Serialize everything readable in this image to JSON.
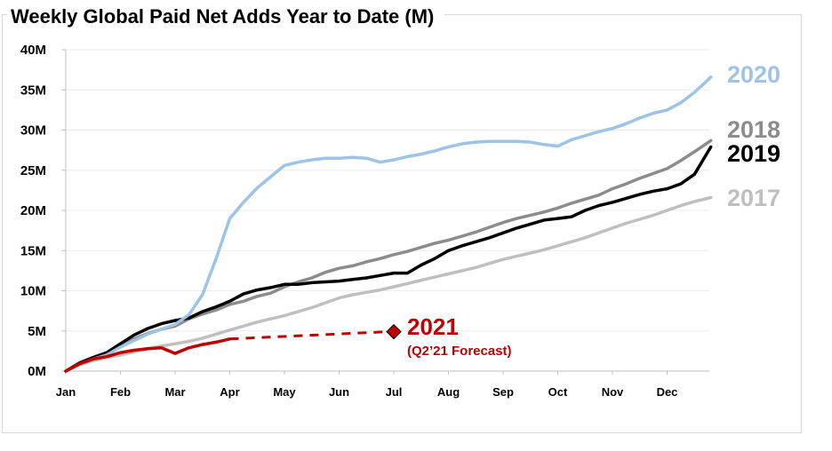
{
  "chart_data": {
    "type": "line",
    "title": "Weekly Global Paid Net Adds Year to Date (M)",
    "xlabel": "",
    "ylabel": "",
    "x_tick_labels": [
      "Jan",
      "Feb",
      "Mar",
      "Apr",
      "May",
      "Jun",
      "Jul",
      "Aug",
      "Sep",
      "Oct",
      "Nov",
      "Dec"
    ],
    "y_tick_labels": [
      "0M",
      "5M",
      "10M",
      "15M",
      "20M",
      "25M",
      "30M",
      "35M",
      "40M"
    ],
    "ylim": [
      0,
      40
    ],
    "y_unit": "M",
    "grid": "horizontal",
    "series": [
      {
        "name": "2017",
        "color": "#bfbfbf",
        "x": [
          0,
          0.25,
          0.5,
          0.75,
          1,
          1.25,
          1.5,
          1.75,
          2,
          2.25,
          2.5,
          2.75,
          3,
          3.25,
          3.5,
          3.75,
          4,
          4.25,
          4.5,
          4.75,
          5,
          5.25,
          5.5,
          5.75,
          6,
          6.25,
          6.5,
          6.75,
          7,
          7.25,
          7.5,
          7.75,
          8,
          8.25,
          8.5,
          8.75,
          9,
          9.25,
          9.5,
          9.75,
          10,
          10.25,
          10.5,
          10.75,
          11,
          11.25,
          11.5,
          11.8
        ],
        "y": [
          0,
          0.8,
          1.3,
          1.7,
          2.0,
          2.4,
          2.8,
          3.1,
          3.4,
          3.7,
          4.1,
          4.6,
          5.1,
          5.6,
          6.1,
          6.5,
          6.9,
          7.4,
          7.9,
          8.5,
          9.1,
          9.5,
          9.8,
          10.1,
          10.5,
          10.9,
          11.3,
          11.7,
          12.1,
          12.5,
          12.9,
          13.4,
          13.9,
          14.3,
          14.7,
          15.1,
          15.6,
          16.1,
          16.6,
          17.2,
          17.8,
          18.4,
          18.9,
          19.4,
          20.0,
          20.6,
          21.1,
          21.6
        ]
      },
      {
        "name": "2018",
        "color": "#8c8c8c",
        "x": [
          0,
          0.25,
          0.5,
          0.75,
          1,
          1.25,
          1.5,
          1.75,
          2,
          2.25,
          2.5,
          2.75,
          3,
          3.25,
          3.5,
          3.75,
          4,
          4.25,
          4.5,
          4.75,
          5,
          5.25,
          5.5,
          5.75,
          6,
          6.25,
          6.5,
          6.75,
          7,
          7.25,
          7.5,
          7.75,
          8,
          8.25,
          8.5,
          8.75,
          9,
          9.25,
          9.5,
          9.75,
          10,
          10.25,
          10.5,
          10.75,
          11,
          11.25,
          11.5,
          11.8
        ],
        "y": [
          0,
          1.0,
          1.7,
          2.2,
          3.2,
          4.0,
          4.7,
          5.2,
          5.6,
          6.5,
          7.1,
          7.6,
          8.3,
          8.7,
          9.3,
          9.7,
          10.5,
          11.1,
          11.6,
          12.3,
          12.8,
          13.1,
          13.6,
          14.0,
          14.5,
          14.9,
          15.4,
          15.9,
          16.3,
          16.8,
          17.3,
          17.9,
          18.5,
          19.0,
          19.4,
          19.8,
          20.3,
          20.9,
          21.4,
          21.9,
          22.7,
          23.3,
          24.0,
          24.6,
          25.2,
          26.2,
          27.3,
          28.7
        ]
      },
      {
        "name": "2019",
        "color": "#000000",
        "x": [
          0,
          0.25,
          0.5,
          0.75,
          1,
          1.25,
          1.5,
          1.75,
          2,
          2.25,
          2.5,
          2.75,
          3,
          3.25,
          3.5,
          3.75,
          4,
          4.25,
          4.5,
          4.75,
          5,
          5.25,
          5.5,
          5.75,
          6,
          6.25,
          6.5,
          6.75,
          7,
          7.25,
          7.5,
          7.75,
          8,
          8.25,
          8.5,
          8.75,
          9,
          9.25,
          9.5,
          9.75,
          10,
          10.25,
          10.5,
          10.75,
          11,
          11.25,
          11.5,
          11.8
        ],
        "y": [
          0,
          1.0,
          1.7,
          2.3,
          3.4,
          4.5,
          5.3,
          5.9,
          6.3,
          6.6,
          7.4,
          8.0,
          8.7,
          9.6,
          10.1,
          10.4,
          10.8,
          10.8,
          11.0,
          11.1,
          11.2,
          11.4,
          11.6,
          11.9,
          12.2,
          12.2,
          13.2,
          14.0,
          15.0,
          15.6,
          16.1,
          16.6,
          17.2,
          17.8,
          18.3,
          18.8,
          19.0,
          19.2,
          20.0,
          20.6,
          21.0,
          21.5,
          22.0,
          22.4,
          22.7,
          23.3,
          24.5,
          27.9
        ]
      },
      {
        "name": "2020",
        "color": "#9dc3e6",
        "x": [
          0,
          0.25,
          0.5,
          0.75,
          1,
          1.25,
          1.5,
          1.75,
          2,
          2.25,
          2.5,
          2.75,
          3,
          3.25,
          3.5,
          3.75,
          4,
          4.25,
          4.5,
          4.75,
          5,
          5.25,
          5.5,
          5.75,
          6,
          6.25,
          6.5,
          6.75,
          7,
          7.25,
          7.5,
          7.75,
          8,
          8.25,
          8.5,
          8.75,
          9,
          9.25,
          9.5,
          9.75,
          10,
          10.25,
          10.5,
          10.75,
          11,
          11.25,
          11.5,
          11.8
        ],
        "y": [
          0,
          0.9,
          1.5,
          2.0,
          3.0,
          3.8,
          4.6,
          5.2,
          5.8,
          7.0,
          9.5,
          14.0,
          19.0,
          21.0,
          22.8,
          24.2,
          25.6,
          26.0,
          26.3,
          26.5,
          26.5,
          26.6,
          26.5,
          26.0,
          26.3,
          26.7,
          27.0,
          27.4,
          27.9,
          28.3,
          28.5,
          28.6,
          28.6,
          28.6,
          28.5,
          28.2,
          28.0,
          28.8,
          29.3,
          29.8,
          30.2,
          30.8,
          31.5,
          32.1,
          32.5,
          33.4,
          34.7,
          36.6
        ]
      },
      {
        "name": "2021",
        "color": "#c00000",
        "x": [
          0,
          0.25,
          0.5,
          0.75,
          1,
          1.25,
          1.5,
          1.75,
          2,
          2.25,
          2.5,
          2.75,
          3
        ],
        "y": [
          0,
          0.9,
          1.5,
          1.8,
          2.3,
          2.6,
          2.8,
          2.9,
          2.2,
          2.9,
          3.3,
          3.6,
          4.0
        ]
      }
    ],
    "forecast": {
      "from": {
        "x": 3,
        "y": 4.0
      },
      "to": {
        "x": 6,
        "y": 4.9
      },
      "style": "dashed",
      "color": "#c00000",
      "marker": "diamond"
    },
    "labels": {
      "2020": "2020",
      "2018": "2018",
      "2019": "2019",
      "2017": "2017",
      "2021": "2021",
      "forecast_note": "(Q2’21 Forecast)"
    }
  }
}
